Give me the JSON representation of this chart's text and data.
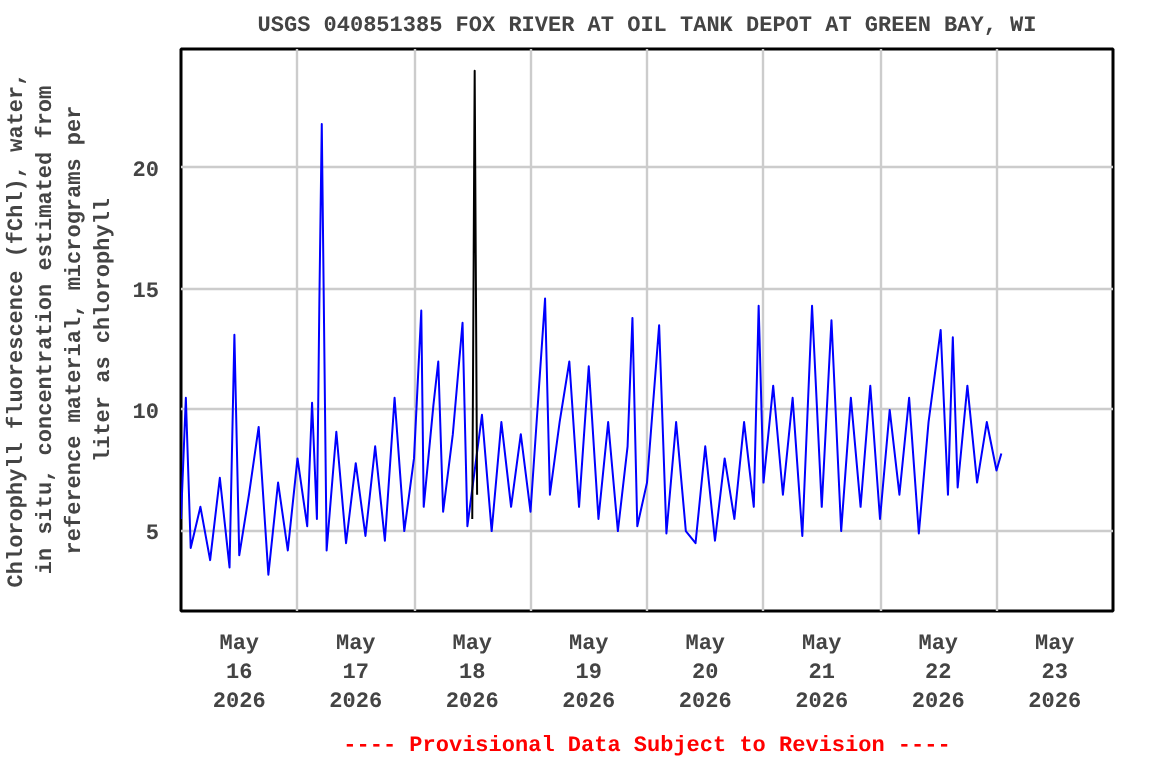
{
  "chart_data": {
    "type": "line",
    "title": "USGS 040851385 FOX RIVER AT OIL TANK DEPOT AT GREEN BAY, WI",
    "ylabel": "Chlorophyll fluorescence (fChl), water, in situ, concentration estimated from reference material, micrograms per liter as chlorophyll",
    "annotations": [
      "---- Provisional Data Subject to Revision ----"
    ],
    "series": [
      {
        "color": "#0000ff",
        "x": [
          "2026-05-16T00:00",
          "2026-05-16T01:00",
          "2026-05-16T02:00",
          "2026-05-16T04:00",
          "2026-05-16T06:00",
          "2026-05-16T08:00",
          "2026-05-16T10:00",
          "2026-05-16T11:00",
          "2026-05-16T12:00",
          "2026-05-16T14:00",
          "2026-05-16T16:00",
          "2026-05-16T18:00",
          "2026-05-16T20:00",
          "2026-05-16T22:00",
          "2026-05-17T00:00",
          "2026-05-17T02:00",
          "2026-05-17T03:00",
          "2026-05-17T04:00",
          "2026-05-17T04:30",
          "2026-05-17T05:00",
          "2026-05-17T06:00",
          "2026-05-17T08:00",
          "2026-05-17T10:00",
          "2026-05-17T12:00",
          "2026-05-17T14:00",
          "2026-05-17T16:00",
          "2026-05-17T18:00",
          "2026-05-17T20:00",
          "2026-05-17T22:00",
          "2026-05-18T00:00",
          "2026-05-18T01:30",
          "2026-05-18T02:00",
          "2026-05-18T04:00",
          "2026-05-18T05:00",
          "2026-05-18T06:00",
          "2026-05-18T08:00",
          "2026-05-18T10:00",
          "2026-05-18T11:00",
          "2026-05-18T14:00",
          "2026-05-18T16:00",
          "2026-05-18T18:00",
          "2026-05-18T20:00",
          "2026-05-18T22:00",
          "2026-05-19T00:00",
          "2026-05-19T03:00",
          "2026-05-19T04:00",
          "2026-05-19T06:00",
          "2026-05-19T08:00",
          "2026-05-19T10:00",
          "2026-05-19T12:00",
          "2026-05-19T14:00",
          "2026-05-19T16:00",
          "2026-05-19T18:00",
          "2026-05-19T20:00",
          "2026-05-19T21:00",
          "2026-05-19T22:00",
          "2026-05-20T00:00",
          "2026-05-20T02:30",
          "2026-05-20T04:00",
          "2026-05-20T06:00",
          "2026-05-20T08:00",
          "2026-05-20T10:00",
          "2026-05-20T12:00",
          "2026-05-20T14:00",
          "2026-05-20T16:00",
          "2026-05-20T18:00",
          "2026-05-20T20:00",
          "2026-05-20T22:00",
          "2026-05-20T23:00",
          "2026-05-21T00:00",
          "2026-05-21T02:00",
          "2026-05-21T04:00",
          "2026-05-21T06:00",
          "2026-05-21T08:00",
          "2026-05-21T10:00",
          "2026-05-21T12:00",
          "2026-05-21T14:00",
          "2026-05-21T16:00",
          "2026-05-21T18:00",
          "2026-05-21T20:00",
          "2026-05-21T22:00",
          "2026-05-22T00:00",
          "2026-05-22T02:00",
          "2026-05-22T04:00",
          "2026-05-22T06:00",
          "2026-05-22T08:00",
          "2026-05-22T10:00",
          "2026-05-22T12:30",
          "2026-05-22T14:00",
          "2026-05-22T15:00",
          "2026-05-22T16:00",
          "2026-05-22T18:00",
          "2026-05-22T20:00",
          "2026-05-22T22:00",
          "2026-05-23T00:00",
          "2026-05-23T01:00"
        ],
        "values": [
          5.5,
          10.5,
          4.3,
          6.0,
          3.8,
          7.2,
          3.5,
          13.1,
          4.0,
          6.5,
          9.3,
          3.2,
          7.0,
          4.2,
          8.0,
          5.2,
          10.3,
          5.5,
          14.4,
          21.8,
          4.2,
          9.1,
          4.5,
          7.8,
          4.8,
          8.5,
          4.6,
          10.5,
          5.0,
          8.0,
          14.1,
          6.0,
          10.2,
          12.0,
          5.8,
          9.0,
          13.6,
          5.2,
          9.8,
          5.0,
          9.5,
          6.0,
          9.0,
          5.8,
          14.6,
          6.5,
          9.5,
          12.0,
          6.0,
          11.8,
          5.5,
          9.5,
          5.0,
          8.5,
          13.8,
          5.2,
          7.0,
          13.5,
          4.9,
          9.5,
          5.0,
          4.5,
          8.5,
          4.6,
          8.0,
          5.5,
          9.5,
          6.0,
          14.3,
          7.0,
          11.0,
          6.5,
          10.5,
          4.8,
          14.3,
          6.0,
          13.7,
          5.0,
          10.5,
          6.0,
          11.0,
          5.5,
          10.0,
          6.5,
          10.5,
          4.9,
          9.5,
          13.3,
          6.5,
          13.0,
          6.8,
          11.0,
          7.0,
          9.5,
          7.5,
          8.2
        ]
      },
      {
        "color": "#000000",
        "x": [
          "2026-05-18T12:00",
          "2026-05-18T12:30",
          "2026-05-18T13:00"
        ],
        "values": [
          5.5,
          24.0,
          6.5
        ]
      }
    ],
    "xlim": [
      "2026-05-16T00:00",
      "2026-05-24T00:00"
    ],
    "xticks": [
      {
        "value": "2026-05-16T12:00",
        "label": "May\n16\n2026"
      },
      {
        "value": "2026-05-17T00:00",
        "label": null
      },
      {
        "value": "2026-05-17T12:00",
        "label": "May\n17\n2026"
      },
      {
        "value": "2026-05-18T00:00",
        "label": null
      },
      {
        "value": "2026-05-18T12:00",
        "label": "May\n18\n2026"
      },
      {
        "value": "2026-05-19T00:00",
        "label": null
      },
      {
        "value": "2026-05-19T12:00",
        "label": "May\n19\n2026"
      },
      {
        "value": "2026-05-20T00:00",
        "label": null
      },
      {
        "value": "2026-05-20T12:00",
        "label": "May\n20\n2026"
      },
      {
        "value": "2026-05-21T00:00",
        "label": null
      },
      {
        "value": "2026-05-21T12:00",
        "label": "May\n21\n2026"
      },
      {
        "value": "2026-05-22T00:00",
        "label": null
      },
      {
        "value": "2026-05-22T12:00",
        "label": "May\n22\n2026"
      },
      {
        "value": "2026-05-23T00:00",
        "label": null
      },
      {
        "value": "2026-05-23T12:00",
        "label": "May\n23\n2026"
      }
    ],
    "ylim": [
      1.7,
      24.9
    ],
    "yticks": [
      5,
      10,
      15,
      20
    ],
    "grid": true
  }
}
